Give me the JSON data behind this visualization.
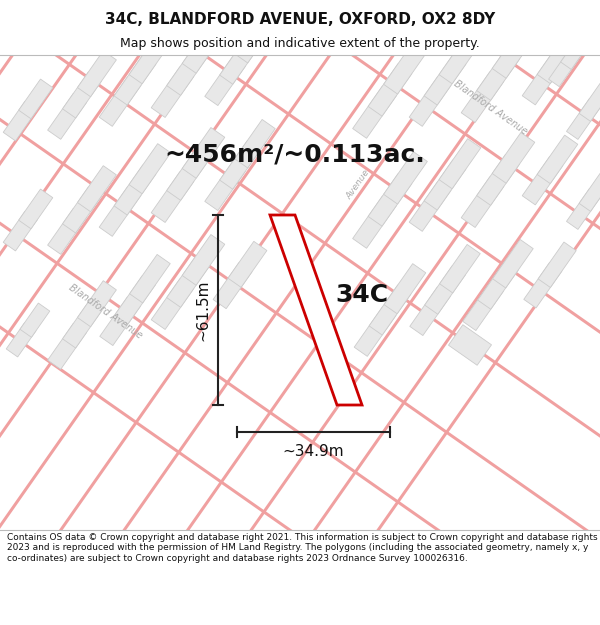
{
  "title": "34C, BLANDFORD AVENUE, OXFORD, OX2 8DY",
  "subtitle": "Map shows position and indicative extent of the property.",
  "area_label": "~456m²/~0.113ac.",
  "property_label": "34C",
  "dim_height": "~61.5m",
  "dim_width": "~34.9m",
  "footer": "Contains OS data © Crown copyright and database right 2021. This information is subject to Crown copyright and database rights 2023 and is reproduced with the permission of HM Land Registry. The polygons (including the associated geometry, namely x, y co-ordinates) are subject to Crown copyright and database rights 2023 Ordnance Survey 100026316.",
  "bg_color": "#ffffff",
  "map_bg": "#ffffff",
  "road_color": "#f0a0a0",
  "road_outline_color": "#e08080",
  "building_fill": "#e8e8e8",
  "building_edge": "#cccccc",
  "property_outline_color": "#cc0000",
  "dim_line_color": "#222222",
  "title_color": "#111111",
  "footer_color": "#111111",
  "street_label_color": "#aaaaaa",
  "title_fontsize": 11,
  "subtitle_fontsize": 9,
  "area_fontsize": 18,
  "property_label_fontsize": 18,
  "dim_fontsize": 11,
  "footer_fontsize": 6.5
}
